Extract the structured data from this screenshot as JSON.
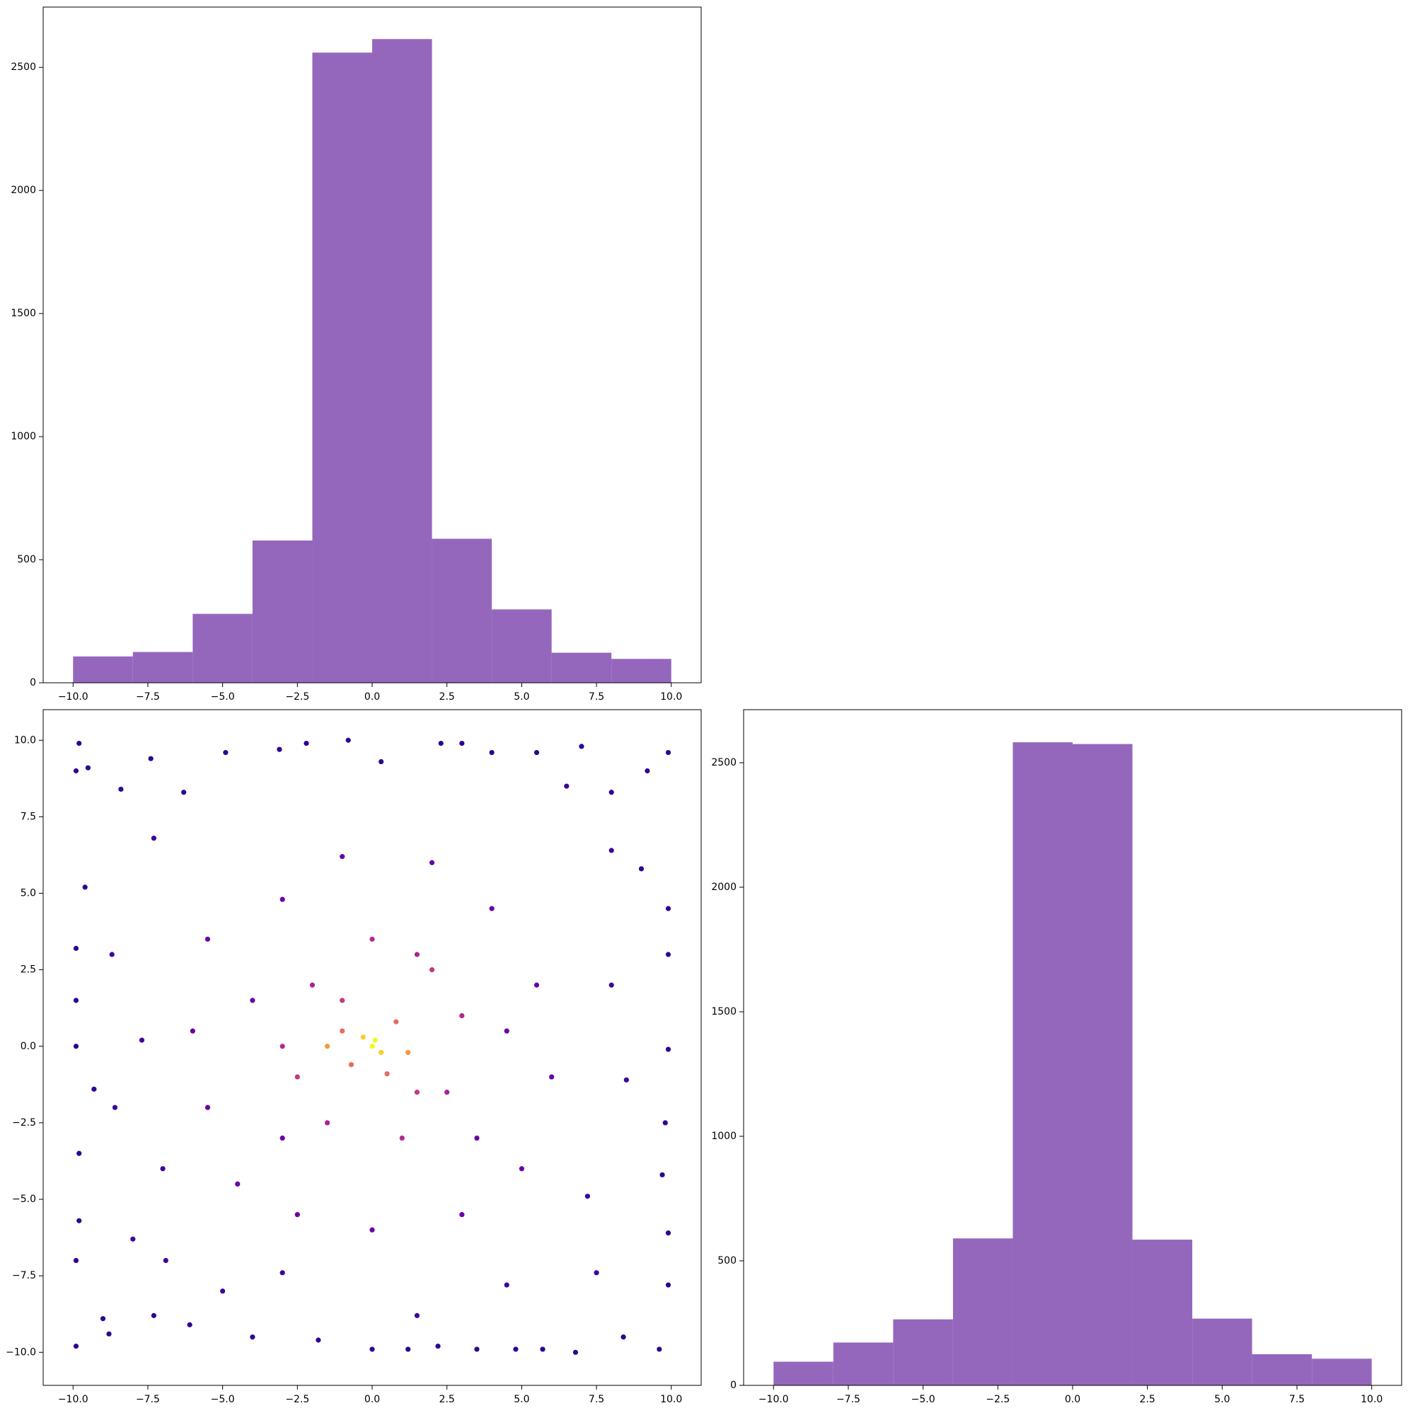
{
  "chart_data": [
    {
      "type": "histogram",
      "color": "#9467bd",
      "bins": [
        -10,
        -8,
        -6,
        -4,
        -2,
        0,
        2,
        4,
        6,
        8,
        10
      ],
      "values": [
        107,
        125,
        280,
        578,
        2560,
        2615,
        585,
        298,
        122,
        97
      ],
      "xlim": [
        -11,
        11
      ],
      "ylim": [
        0,
        2745
      ],
      "xticks": [
        {
          "value": -10,
          "label": "−10.0"
        },
        {
          "value": -7.5,
          "label": "−7.5"
        },
        {
          "value": -5,
          "label": "−5.0"
        },
        {
          "value": -2.5,
          "label": "−2.5"
        },
        {
          "value": 0,
          "label": "0.0"
        },
        {
          "value": 2.5,
          "label": "2.5"
        },
        {
          "value": 5,
          "label": "5.0"
        },
        {
          "value": 7.5,
          "label": "7.5"
        },
        {
          "value": 10,
          "label": "10.0"
        }
      ],
      "yticks": [
        0,
        500,
        1000,
        1500,
        2000,
        2500
      ]
    },
    {
      "type": "scatter",
      "x": [
        -9.8,
        -9.9,
        -9.5,
        -8.4,
        -7.4,
        -6.3,
        -4.9,
        -3.1,
        -2.2,
        -0.8,
        0.3,
        2.3,
        3.0,
        4.0,
        5.5,
        7.0,
        8.0,
        9.2,
        9.9,
        -9.9,
        -9.6,
        -9.9,
        -9.9,
        -9.3,
        -9.8,
        -9.8,
        -9.9,
        -9.0,
        -9.9,
        -8.8,
        -7.3,
        -6.1,
        -4.0,
        -1.8,
        0.0,
        1.2,
        2.2,
        3.5,
        4.8,
        5.7,
        6.8,
        8.4,
        9.6,
        9.9,
        9.9,
        9.7,
        9.8,
        9.9,
        9.9,
        9.9,
        9.0,
        -8.0,
        -7.0,
        -8.6,
        -7.7,
        -8.7,
        -7.3,
        -6.9,
        7.5,
        7.2,
        8.5,
        8.0,
        8.0,
        6.5,
        -5.0,
        4.5,
        -3.0,
        1.5,
        -5.5,
        -4.5,
        -3,
        -1,
        2,
        4,
        5.5,
        6,
        5,
        3,
        0,
        -2.5,
        -5.5,
        -6,
        -4,
        4.5,
        3.5,
        -3,
        -2,
        1.5,
        2.5,
        -1.5,
        0,
        -3,
        3,
        1,
        -2.5,
        2,
        -1,
        1.5,
        -1,
        0.8,
        0.5,
        -0.7,
        -1.5,
        1.2,
        -0.3,
        0.3,
        0,
        0.1
      ],
      "y": [
        9.9,
        9.0,
        9.1,
        8.4,
        9.4,
        8.3,
        9.6,
        9.7,
        9.9,
        10.0,
        9.3,
        9.9,
        9.9,
        9.6,
        9.6,
        9.8,
        8.3,
        9.0,
        9.6,
        3.2,
        5.2,
        1.5,
        0.0,
        -1.4,
        -3.5,
        -5.7,
        -7.0,
        -8.9,
        -9.8,
        -9.4,
        -8.8,
        -9.1,
        -9.5,
        -9.6,
        -9.9,
        -9.9,
        -9.8,
        -9.9,
        -9.9,
        -9.9,
        -10.0,
        -9.5,
        -9.9,
        -7.8,
        -6.1,
        -4.2,
        -2.5,
        -0.1,
        3.0,
        4.5,
        5.8,
        -6.3,
        -4.0,
        -2.0,
        0.2,
        3.0,
        6.8,
        -7.0,
        -7.4,
        -4.9,
        -1.1,
        2.0,
        6.4,
        8.5,
        -8.0,
        -7.8,
        -7.4,
        -8.8,
        3.5,
        -4.5,
        4.8,
        6.2,
        6,
        4.5,
        2,
        -1,
        -4,
        -5.5,
        -6,
        -5.5,
        -2,
        0.5,
        1.5,
        0.5,
        -3,
        -3,
        2,
        3,
        -1.5,
        -2.5,
        3.5,
        0,
        1,
        -3,
        -1,
        2.5,
        1.5,
        -1.5,
        0.5,
        0.8,
        -0.9,
        -0.6,
        0,
        -0.2,
        0.3,
        -0.2,
        0,
        0.2
      ],
      "colors": [
        "#2d0594",
        "#2d0594",
        "#2d0594",
        "#2d0594",
        "#2d0594",
        "#2d0594",
        "#2d0594",
        "#2d0594",
        "#2d0594",
        "#2d0594",
        "#2d0594",
        "#2d0594",
        "#2d0594",
        "#2d0594",
        "#2d0594",
        "#2d0594",
        "#2d0594",
        "#2d0594",
        "#2d0594",
        "#2d0594",
        "#2d0594",
        "#2d0594",
        "#2d0594",
        "#2d0594",
        "#2d0594",
        "#2d0594",
        "#2d0594",
        "#2d0594",
        "#2d0594",
        "#2d0594",
        "#2d0594",
        "#2d0594",
        "#2d0594",
        "#2d0594",
        "#2d0594",
        "#2d0594",
        "#2d0594",
        "#2d0594",
        "#2d0594",
        "#2d0594",
        "#2d0594",
        "#2d0594",
        "#2d0594",
        "#2d0594",
        "#2d0594",
        "#2d0594",
        "#2d0594",
        "#2d0594",
        "#2d0594",
        "#2d0594",
        "#2d0594",
        "#3d049b",
        "#3d049b",
        "#3d049b",
        "#3d049b",
        "#3d049b",
        "#3d049b",
        "#3d049b",
        "#3d049b",
        "#3d049b",
        "#3d049b",
        "#3d049b",
        "#3d049b",
        "#3d049b",
        "#3d049b",
        "#3d049b",
        "#3d049b",
        "#3d049b",
        "#6a00a8",
        "#6a00a8",
        "#6a00a8",
        "#6a00a8",
        "#6a00a8",
        "#6a00a8",
        "#6a00a8",
        "#6a00a8",
        "#6a00a8",
        "#6a00a8",
        "#6a00a8",
        "#6a00a8",
        "#6a00a8",
        "#6a00a8",
        "#6a00a8",
        "#6a00a8",
        "#6a00a8",
        "#6a00a8",
        "#a82296",
        "#a82296",
        "#a82296",
        "#a82296",
        "#b12a90",
        "#b12a90",
        "#b12a90",
        "#b12a90",
        "#c03a83",
        "#c03a83",
        "#c03a83",
        "#c03a83",
        "#e66c5c",
        "#e66c5c",
        "#e66c5c",
        "#e66c5c",
        "#f89540",
        "#f89540",
        "#fcce25",
        "#fcce25",
        "#f0f921",
        "#f0f921"
      ],
      "xlim": [
        -11,
        11
      ],
      "ylim": [
        -11.08,
        11
      ],
      "xticks": [
        {
          "value": -10,
          "label": "−10.0"
        },
        {
          "value": -7.5,
          "label": "−7.5"
        },
        {
          "value": -5,
          "label": "−5.0"
        },
        {
          "value": -2.5,
          "label": "−2.5"
        },
        {
          "value": 0,
          "label": "0.0"
        },
        {
          "value": 2.5,
          "label": "2.5"
        },
        {
          "value": 5,
          "label": "5.0"
        },
        {
          "value": 7.5,
          "label": "7.5"
        },
        {
          "value": 10,
          "label": "10.0"
        }
      ],
      "yticks": [
        {
          "value": -10,
          "label": "−10.0"
        },
        {
          "value": -7.5,
          "label": "−7.5"
        },
        {
          "value": -5,
          "label": "−5.0"
        },
        {
          "value": -2.5,
          "label": "−2.5"
        },
        {
          "value": 0,
          "label": "0.0"
        },
        {
          "value": 2.5,
          "label": "2.5"
        },
        {
          "value": 5,
          "label": "5.0"
        },
        {
          "value": 7.5,
          "label": "7.5"
        },
        {
          "value": 10,
          "label": "10.0"
        }
      ]
    },
    {
      "type": "histogram",
      "color": "#9467bd",
      "bins": [
        -10,
        -8,
        -6,
        -4,
        -2,
        0,
        2,
        4,
        6,
        8,
        10
      ],
      "values": [
        95,
        172,
        265,
        590,
        2582,
        2575,
        585,
        268,
        125,
        107
      ],
      "xlim": [
        -11,
        11
      ],
      "ylim": [
        0,
        2713
      ],
      "xticks": [
        {
          "value": -10,
          "label": "−10.0"
        },
        {
          "value": -7.5,
          "label": "−7.5"
        },
        {
          "value": -5,
          "label": "−5.0"
        },
        {
          "value": -2.5,
          "label": "−2.5"
        },
        {
          "value": 0,
          "label": "0.0"
        },
        {
          "value": 2.5,
          "label": "2.5"
        },
        {
          "value": 5,
          "label": "5.0"
        },
        {
          "value": 7.5,
          "label": "7.5"
        },
        {
          "value": 10,
          "label": "10.0"
        }
      ],
      "yticks": [
        0,
        500,
        1000,
        1500,
        2000,
        2500
      ]
    }
  ]
}
